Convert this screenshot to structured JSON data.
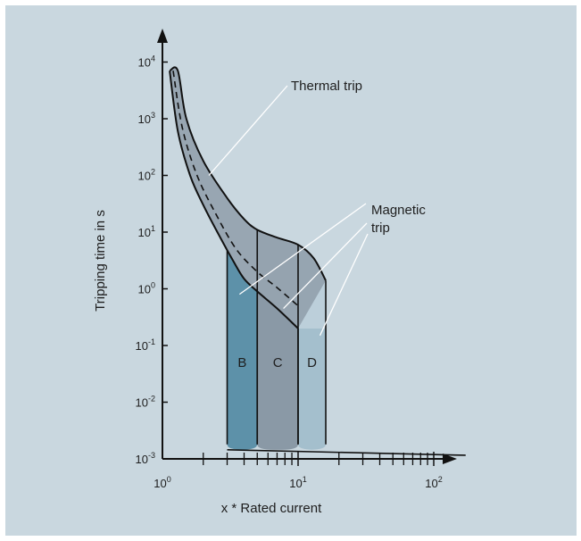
{
  "colors": {
    "background": "#c9d7df",
    "thermal_band": "#8c9aa6",
    "curve_b": "#5d91a9",
    "curve_c": "#8a99a6",
    "curve_d": "#a4bfcd",
    "c_upper_region": "#b9c7d1",
    "d_upper_region": "#bccfda",
    "stroke": "#111111",
    "leader": "#ffffff"
  },
  "icons": [
    "y-axis-arrow-icon",
    "x-axis-arrow-icon"
  ],
  "chart_data": {
    "type": "area",
    "title": "",
    "xlabel": "x * Rated current",
    "ylabel": "Tripping time in s",
    "x_scale": "log",
    "y_scale": "log",
    "xlim": [
      1,
      200
    ],
    "ylim": [
      0.001,
      10000
    ],
    "grid": false,
    "legend": "none",
    "x_ticks": [
      {
        "value": 1,
        "base": "10",
        "exp": "0"
      },
      {
        "value": 10,
        "base": "10",
        "exp": "1"
      },
      {
        "value": 100,
        "base": "10",
        "exp": "2"
      }
    ],
    "y_ticks": [
      {
        "value": 10000,
        "base": "10",
        "exp": "4"
      },
      {
        "value": 1000,
        "base": "10",
        "exp": "3"
      },
      {
        "value": 100,
        "base": "10",
        "exp": "2"
      },
      {
        "value": 10,
        "base": "10",
        "exp": "1"
      },
      {
        "value": 1,
        "base": "10",
        "exp": "0"
      },
      {
        "value": 0.1,
        "base": "10",
        "exp": "-1"
      },
      {
        "value": 0.01,
        "base": "10",
        "exp": "-2"
      },
      {
        "value": 0.001,
        "base": "10",
        "exp": "-3"
      }
    ],
    "x_minor_ticks": [
      2,
      3,
      4,
      5,
      6,
      7,
      8,
      9,
      20,
      30,
      40,
      50,
      60,
      70,
      80,
      90
    ],
    "thermal_band": {
      "upper": [
        [
          1.13,
          7000
        ],
        [
          1.3,
          7000
        ],
        [
          1.5,
          1000
        ],
        [
          2,
          180
        ],
        [
          3,
          40
        ],
        [
          4,
          17
        ],
        [
          5,
          11
        ],
        [
          7,
          8
        ],
        [
          10,
          6
        ],
        [
          13,
          3.5
        ],
        [
          16,
          1.4
        ]
      ],
      "middle_dashed": [
        [
          1.2,
          7000
        ],
        [
          1.4,
          700
        ],
        [
          1.8,
          100
        ],
        [
          2.5,
          20
        ],
        [
          3.5,
          5
        ],
        [
          5,
          2
        ],
        [
          7,
          1.05
        ],
        [
          10,
          0.5
        ]
      ],
      "lower": [
        [
          1.13,
          7000
        ],
        [
          1.3,
          600
        ],
        [
          1.6,
          100
        ],
        [
          2,
          30
        ],
        [
          2.6,
          9
        ],
        [
          3.3,
          3.2
        ],
        [
          4,
          1.5
        ],
        [
          5,
          0.9
        ],
        [
          7,
          0.45
        ],
        [
          10,
          0.2
        ]
      ]
    },
    "series": [
      {
        "name": "B",
        "magnetic_low": 3,
        "magnetic_high": 5
      },
      {
        "name": "C",
        "magnetic_low": 5,
        "magnetic_high": 10
      },
      {
        "name": "D",
        "magnetic_low": 10,
        "magnetic_high": 16
      }
    ],
    "instantaneous_floor": [
      [
        3,
        0.0018
      ],
      [
        16,
        0.0015
      ],
      [
        200,
        0.0012
      ]
    ],
    "annotations": [
      {
        "name": "thermal",
        "text": [
          "Thermal trip"
        ],
        "target": [
          2.2,
          100
        ]
      },
      {
        "name": "magnetic",
        "text": [
          "Magnetic",
          "trip"
        ],
        "targets": [
          [
            3.7,
            0.8
          ],
          [
            7.8,
            0.45
          ],
          [
            14.5,
            0.15
          ]
        ]
      }
    ]
  }
}
